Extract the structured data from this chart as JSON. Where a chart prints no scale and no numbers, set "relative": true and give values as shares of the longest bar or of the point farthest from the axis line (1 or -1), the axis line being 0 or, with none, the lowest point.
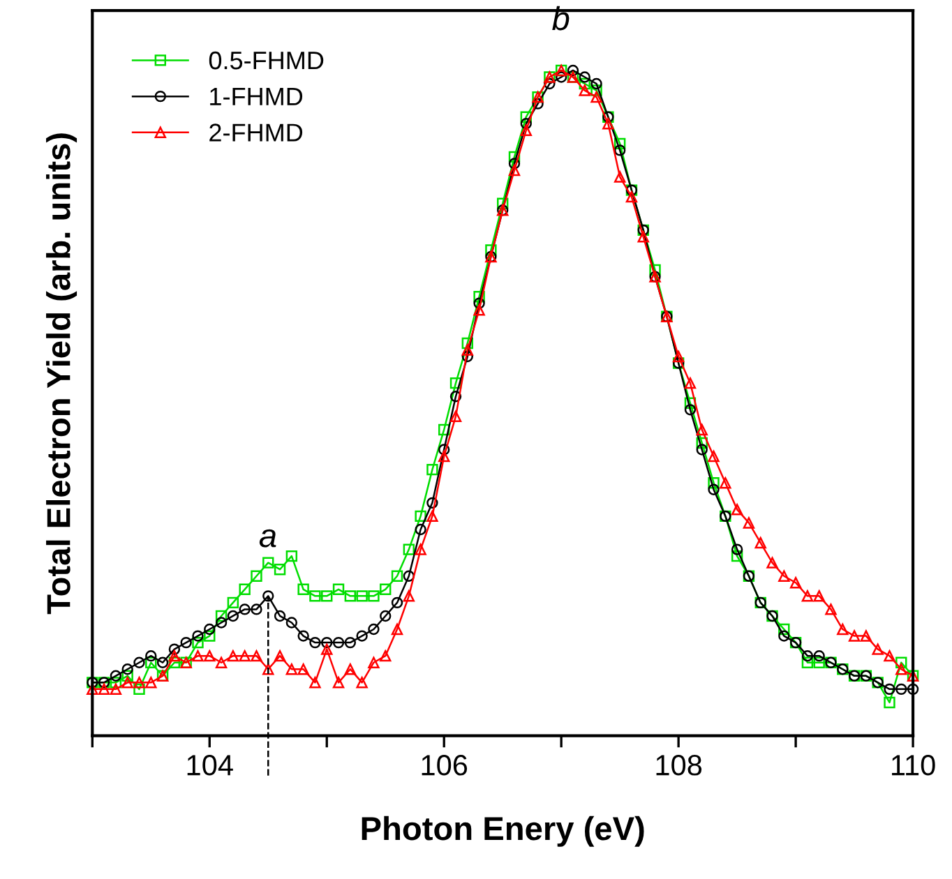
{
  "chart_data": {
    "type": "line",
    "relative": true,
    "xlabel": "Photon Enery (eV)",
    "ylabel": "Total Electron Yield (arb. units)",
    "xlim": [
      103,
      110
    ],
    "xticks": [
      {
        "value": 103,
        "label": null
      },
      104,
      {
        "value": 105,
        "label": null
      },
      106,
      {
        "value": 107,
        "label": null
      },
      108,
      {
        "value": 109,
        "label": null
      },
      110
    ],
    "x": [
      103.0,
      103.1,
      103.2,
      103.3,
      103.4,
      103.5,
      103.6,
      103.7,
      103.8,
      103.9,
      104.0,
      104.1,
      104.2,
      104.3,
      104.4,
      104.5,
      104.6,
      104.7,
      104.8,
      104.9,
      105.0,
      105.1,
      105.2,
      105.3,
      105.4,
      105.5,
      105.6,
      105.7,
      105.8,
      105.9,
      106.0,
      106.1,
      106.2,
      106.3,
      106.4,
      106.5,
      106.6,
      106.7,
      106.8,
      106.9,
      107.0,
      107.1,
      107.2,
      107.3,
      107.4,
      107.5,
      107.6,
      107.7,
      107.8,
      107.9,
      108.0,
      108.1,
      108.2,
      108.3,
      108.4,
      108.5,
      108.6,
      108.7,
      108.8,
      108.9,
      109.0,
      109.1,
      109.2,
      109.3,
      109.4,
      109.5,
      109.6,
      109.7,
      109.8,
      109.9,
      110.0
    ],
    "series": [
      {
        "name": "0.5-FHMD",
        "color": "#00dd00",
        "marker": "square",
        "values": [
          0.08,
          0.08,
          0.08,
          0.09,
          0.07,
          0.11,
          0.09,
          0.11,
          0.11,
          0.14,
          0.15,
          0.18,
          0.2,
          0.22,
          0.24,
          0.26,
          0.25,
          0.27,
          0.22,
          0.21,
          0.21,
          0.22,
          0.21,
          0.21,
          0.21,
          0.22,
          0.24,
          0.28,
          0.33,
          0.4,
          0.46,
          0.53,
          0.59,
          0.66,
          0.73,
          0.8,
          0.87,
          0.93,
          0.96,
          0.99,
          1.0,
          0.99,
          0.98,
          0.97,
          0.93,
          0.89,
          0.82,
          0.76,
          0.7,
          0.63,
          0.56,
          0.5,
          0.44,
          0.38,
          0.33,
          0.27,
          0.24,
          0.2,
          0.18,
          0.16,
          0.14,
          0.11,
          0.11,
          0.11,
          0.1,
          0.09,
          0.09,
          0.08,
          0.05,
          0.11,
          0.09
        ]
      },
      {
        "name": "1-FHMD",
        "color": "#000000",
        "marker": "circle",
        "values": [
          0.08,
          0.08,
          0.09,
          0.1,
          0.11,
          0.12,
          0.11,
          0.13,
          0.14,
          0.15,
          0.16,
          0.17,
          0.18,
          0.19,
          0.19,
          0.21,
          0.18,
          0.17,
          0.15,
          0.14,
          0.14,
          0.14,
          0.14,
          0.15,
          0.16,
          0.18,
          0.2,
          0.24,
          0.31,
          0.35,
          0.43,
          0.51,
          0.57,
          0.65,
          0.72,
          0.79,
          0.86,
          0.92,
          0.95,
          0.98,
          0.99,
          1.0,
          0.99,
          0.98,
          0.93,
          0.88,
          0.82,
          0.76,
          0.69,
          0.63,
          0.56,
          0.49,
          0.43,
          0.37,
          0.33,
          0.28,
          0.24,
          0.2,
          0.18,
          0.15,
          0.14,
          0.12,
          0.12,
          0.11,
          0.1,
          0.09,
          0.09,
          0.08,
          0.07,
          0.07,
          0.07
        ]
      },
      {
        "name": "2-FHMD",
        "color": "#ff0000",
        "marker": "triangle",
        "values": [
          0.07,
          0.07,
          0.07,
          0.08,
          0.08,
          0.08,
          0.09,
          0.12,
          0.11,
          0.12,
          0.12,
          0.11,
          0.12,
          0.12,
          0.12,
          0.1,
          0.12,
          0.1,
          0.1,
          0.08,
          0.13,
          0.08,
          0.1,
          0.08,
          0.11,
          0.12,
          0.16,
          0.21,
          0.28,
          0.33,
          0.42,
          0.48,
          0.58,
          0.64,
          0.72,
          0.79,
          0.85,
          0.91,
          0.96,
          0.99,
          1.0,
          0.99,
          0.97,
          0.96,
          0.92,
          0.84,
          0.81,
          0.75,
          0.69,
          0.63,
          0.57,
          0.53,
          0.46,
          0.42,
          0.38,
          0.34,
          0.32,
          0.29,
          0.26,
          0.24,
          0.23,
          0.21,
          0.21,
          0.19,
          0.16,
          0.15,
          0.15,
          0.13,
          0.12,
          0.1,
          0.09
        ]
      },
      {
        "x": [
          104.5,
          104.5
        ],
        "color": "#000000",
        "marker": "none",
        "line_style": "dashed",
        "values": [
          -0.06,
          0.21
        ]
      }
    ],
    "annotations": [
      "a",
      "b"
    ],
    "legend": "top left",
    "grid": false
  }
}
